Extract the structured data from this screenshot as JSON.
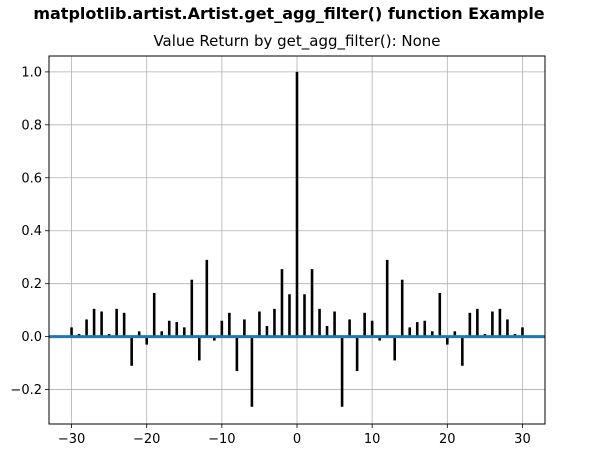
{
  "figure": {
    "suptitle": "matplotlib.artist.Artist.get_agg_filter() function Example",
    "title": "Value Return by get_agg_filter(): None"
  },
  "colors": {
    "stem": "#000000",
    "baseline": "#1f77b4",
    "grid": "#b0b0b0",
    "axes": "#000000"
  },
  "chart_data": {
    "type": "bar",
    "title": "Value Return by get_agg_filter(): None",
    "xlabel": "",
    "ylabel": "",
    "xlim": [
      -33,
      33
    ],
    "ylim": [
      -0.33,
      1.06
    ],
    "grid": true,
    "legend": "none",
    "xticks": [
      -30,
      -20,
      -10,
      0,
      10,
      20,
      30
    ],
    "xtick_labels": [
      "−30",
      "−20",
      "−10",
      "0",
      "10",
      "20",
      "30"
    ],
    "yticks": [
      -0.2,
      0.0,
      0.2,
      0.4,
      0.6,
      0.8,
      1.0
    ],
    "ytick_labels": [
      "−0.2",
      "0.0",
      "0.2",
      "0.4",
      "0.6",
      "0.8",
      "1.0"
    ],
    "baseline_y": 0,
    "x": [
      -30,
      -29,
      -28,
      -27,
      -26,
      -25,
      -24,
      -23,
      -22,
      -21,
      -20,
      -19,
      -18,
      -17,
      -16,
      -15,
      -14,
      -13,
      -12,
      -11,
      -10,
      -9,
      -8,
      -7,
      -6,
      -5,
      -4,
      -3,
      -2,
      -1,
      0,
      1,
      2,
      3,
      4,
      5,
      6,
      7,
      8,
      9,
      10,
      11,
      12,
      13,
      14,
      15,
      16,
      17,
      18,
      19,
      20,
      21,
      22,
      23,
      24,
      25,
      26,
      27,
      28,
      29,
      30
    ],
    "values": [
      0.035,
      0.01,
      0.065,
      0.105,
      0.095,
      0.01,
      0.105,
      0.09,
      -0.11,
      0.02,
      -0.03,
      0.165,
      0.02,
      0.06,
      0.055,
      0.035,
      0.215,
      -0.09,
      0.29,
      -0.015,
      0.06,
      0.09,
      -0.13,
      0.065,
      -0.265,
      0.095,
      0.04,
      0.105,
      0.255,
      0.16,
      1.0,
      0.16,
      0.255,
      0.105,
      0.04,
      0.095,
      -0.265,
      0.065,
      -0.13,
      0.09,
      0.06,
      -0.015,
      0.29,
      -0.09,
      0.215,
      0.035,
      0.055,
      0.06,
      0.02,
      0.165,
      -0.03,
      0.02,
      -0.11,
      0.09,
      0.105,
      0.01,
      0.095,
      0.105,
      0.065,
      0.01,
      0.035
    ]
  }
}
